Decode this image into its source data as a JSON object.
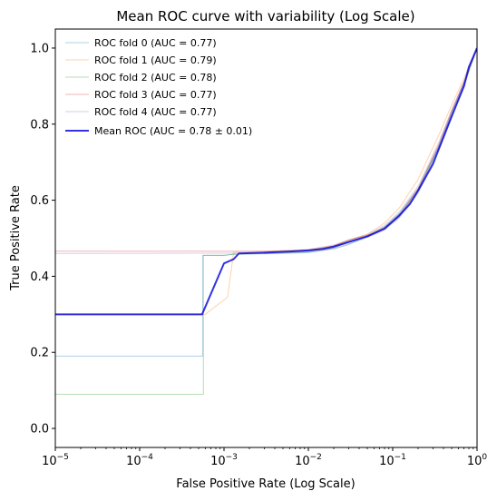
{
  "chart_data": {
    "type": "line",
    "title": "Mean ROC curve with variability (Log Scale)",
    "xlabel": "False Positive Rate (Log Scale)",
    "ylabel": "True Positive Rate",
    "xscale": "log",
    "xlim": [
      1e-05,
      1
    ],
    "ylim": [
      -0.05,
      1.05
    ],
    "x_ticks": [
      {
        "value": 1e-05,
        "base": "10",
        "exp": "−5"
      },
      {
        "value": 0.0001,
        "base": "10",
        "exp": "−4"
      },
      {
        "value": 0.001,
        "base": "10",
        "exp": "−3"
      },
      {
        "value": 0.01,
        "base": "10",
        "exp": "−2"
      },
      {
        "value": 0.1,
        "base": "10",
        "exp": "−1"
      },
      {
        "value": 1,
        "base": "10",
        "exp": "0"
      }
    ],
    "y_ticks": [
      {
        "value": 0.0,
        "label": "0.0"
      },
      {
        "value": 0.2,
        "label": "0.2"
      },
      {
        "value": 0.4,
        "label": "0.4"
      },
      {
        "value": 0.6,
        "label": "0.6"
      },
      {
        "value": 0.8,
        "label": "0.8"
      },
      {
        "value": 1.0,
        "label": "1.0"
      }
    ],
    "grid": false,
    "legend_position": "top-left",
    "series": [
      {
        "name": "ROC fold 0 (AUC = 0.77)",
        "color": "#1f77b4",
        "opacity": 0.35,
        "width": 1,
        "points": [
          [
            1e-05,
            0.19
          ],
          [
            0.00056,
            0.19
          ],
          [
            0.00056,
            0.455
          ],
          [
            0.001,
            0.455
          ],
          [
            0.0013,
            0.458
          ],
          [
            0.003,
            0.459
          ],
          [
            0.01,
            0.462
          ],
          [
            0.02,
            0.472
          ],
          [
            0.03,
            0.483
          ],
          [
            0.05,
            0.505
          ],
          [
            0.08,
            0.53
          ],
          [
            0.12,
            0.565
          ],
          [
            0.2,
            0.63
          ],
          [
            0.35,
            0.74
          ],
          [
            0.5,
            0.83
          ],
          [
            0.7,
            0.91
          ],
          [
            1,
            1
          ]
        ]
      },
      {
        "name": "ROC fold 1 (AUC = 0.79)",
        "color": "#ff7f0e",
        "opacity": 0.35,
        "width": 1,
        "points": [
          [
            1e-05,
            0.3
          ],
          [
            0.0006,
            0.3
          ],
          [
            0.0011,
            0.345
          ],
          [
            0.0013,
            0.463
          ],
          [
            0.003,
            0.465
          ],
          [
            0.01,
            0.47
          ],
          [
            0.02,
            0.48
          ],
          [
            0.03,
            0.495
          ],
          [
            0.05,
            0.51
          ],
          [
            0.08,
            0.54
          ],
          [
            0.12,
            0.58
          ],
          [
            0.2,
            0.655
          ],
          [
            0.35,
            0.77
          ],
          [
            0.5,
            0.85
          ],
          [
            0.7,
            0.92
          ],
          [
            1,
            1
          ]
        ]
      },
      {
        "name": "ROC fold 2 (AUC = 0.78)",
        "color": "#2ca02c",
        "opacity": 0.35,
        "width": 1,
        "points": [
          [
            1e-05,
            0.09
          ],
          [
            0.00057,
            0.09
          ],
          [
            0.00057,
            0.455
          ],
          [
            0.001,
            0.455
          ],
          [
            0.0013,
            0.458
          ],
          [
            0.003,
            0.46
          ],
          [
            0.01,
            0.465
          ],
          [
            0.02,
            0.475
          ],
          [
            0.03,
            0.49
          ],
          [
            0.05,
            0.505
          ],
          [
            0.08,
            0.525
          ],
          [
            0.12,
            0.56
          ],
          [
            0.2,
            0.625
          ],
          [
            0.35,
            0.735
          ],
          [
            0.5,
            0.82
          ],
          [
            0.7,
            0.9
          ],
          [
            1,
            1
          ]
        ]
      },
      {
        "name": "ROC fold 3 (AUC = 0.77)",
        "color": "#d62728",
        "opacity": 0.35,
        "width": 1,
        "points": [
          [
            1e-05,
            0.466
          ],
          [
            0.003,
            0.466
          ],
          [
            0.01,
            0.468
          ],
          [
            0.02,
            0.48
          ],
          [
            0.03,
            0.495
          ],
          [
            0.05,
            0.508
          ],
          [
            0.08,
            0.528
          ],
          [
            0.12,
            0.56
          ],
          [
            0.2,
            0.63
          ],
          [
            0.35,
            0.745
          ],
          [
            0.5,
            0.835
          ],
          [
            0.7,
            0.91
          ],
          [
            1,
            1
          ]
        ]
      },
      {
        "name": "ROC fold 4 (AUC = 0.77)",
        "color": "#9467bd",
        "opacity": 0.35,
        "width": 1,
        "points": [
          [
            1e-05,
            0.46
          ],
          [
            0.003,
            0.461
          ],
          [
            0.01,
            0.465
          ],
          [
            0.02,
            0.475
          ],
          [
            0.03,
            0.49
          ],
          [
            0.05,
            0.505
          ],
          [
            0.08,
            0.525
          ],
          [
            0.12,
            0.555
          ],
          [
            0.2,
            0.625
          ],
          [
            0.35,
            0.74
          ],
          [
            0.5,
            0.83
          ],
          [
            0.7,
            0.905
          ],
          [
            1,
            1
          ]
        ]
      },
      {
        "name": "Mean ROC (AUC = 0.78 ± 0.01)",
        "color": "#0000dd",
        "opacity": 0.8,
        "width": 2,
        "points": [
          [
            1e-05,
            0.3
          ],
          [
            0.00055,
            0.3
          ],
          [
            0.001,
            0.434
          ],
          [
            0.0013,
            0.445
          ],
          [
            0.0015,
            0.46
          ],
          [
            0.003,
            0.462
          ],
          [
            0.006,
            0.465
          ],
          [
            0.01,
            0.468
          ],
          [
            0.015,
            0.472
          ],
          [
            0.02,
            0.478
          ],
          [
            0.03,
            0.49
          ],
          [
            0.05,
            0.505
          ],
          [
            0.08,
            0.525
          ],
          [
            0.12,
            0.56
          ],
          [
            0.16,
            0.59
          ],
          [
            0.2,
            0.625
          ],
          [
            0.3,
            0.695
          ],
          [
            0.5,
            0.82
          ],
          [
            0.7,
            0.9
          ],
          [
            0.8,
            0.95
          ],
          [
            1,
            1
          ]
        ]
      }
    ],
    "band": {
      "color": "#8080a0",
      "opacity": 0.25,
      "points": [
        [
          0.003,
          0.458,
          0.466
        ],
        [
          0.01,
          0.462,
          0.472
        ],
        [
          0.02,
          0.472,
          0.484
        ],
        [
          0.03,
          0.484,
          0.497
        ],
        [
          0.05,
          0.5,
          0.512
        ],
        [
          0.08,
          0.52,
          0.535
        ],
        [
          0.12,
          0.552,
          0.572
        ],
        [
          0.2,
          0.615,
          0.64
        ],
        [
          0.35,
          0.73,
          0.755
        ],
        [
          0.5,
          0.82,
          0.84
        ],
        [
          0.7,
          0.9,
          0.915
        ],
        [
          1,
          1,
          1
        ]
      ]
    }
  }
}
